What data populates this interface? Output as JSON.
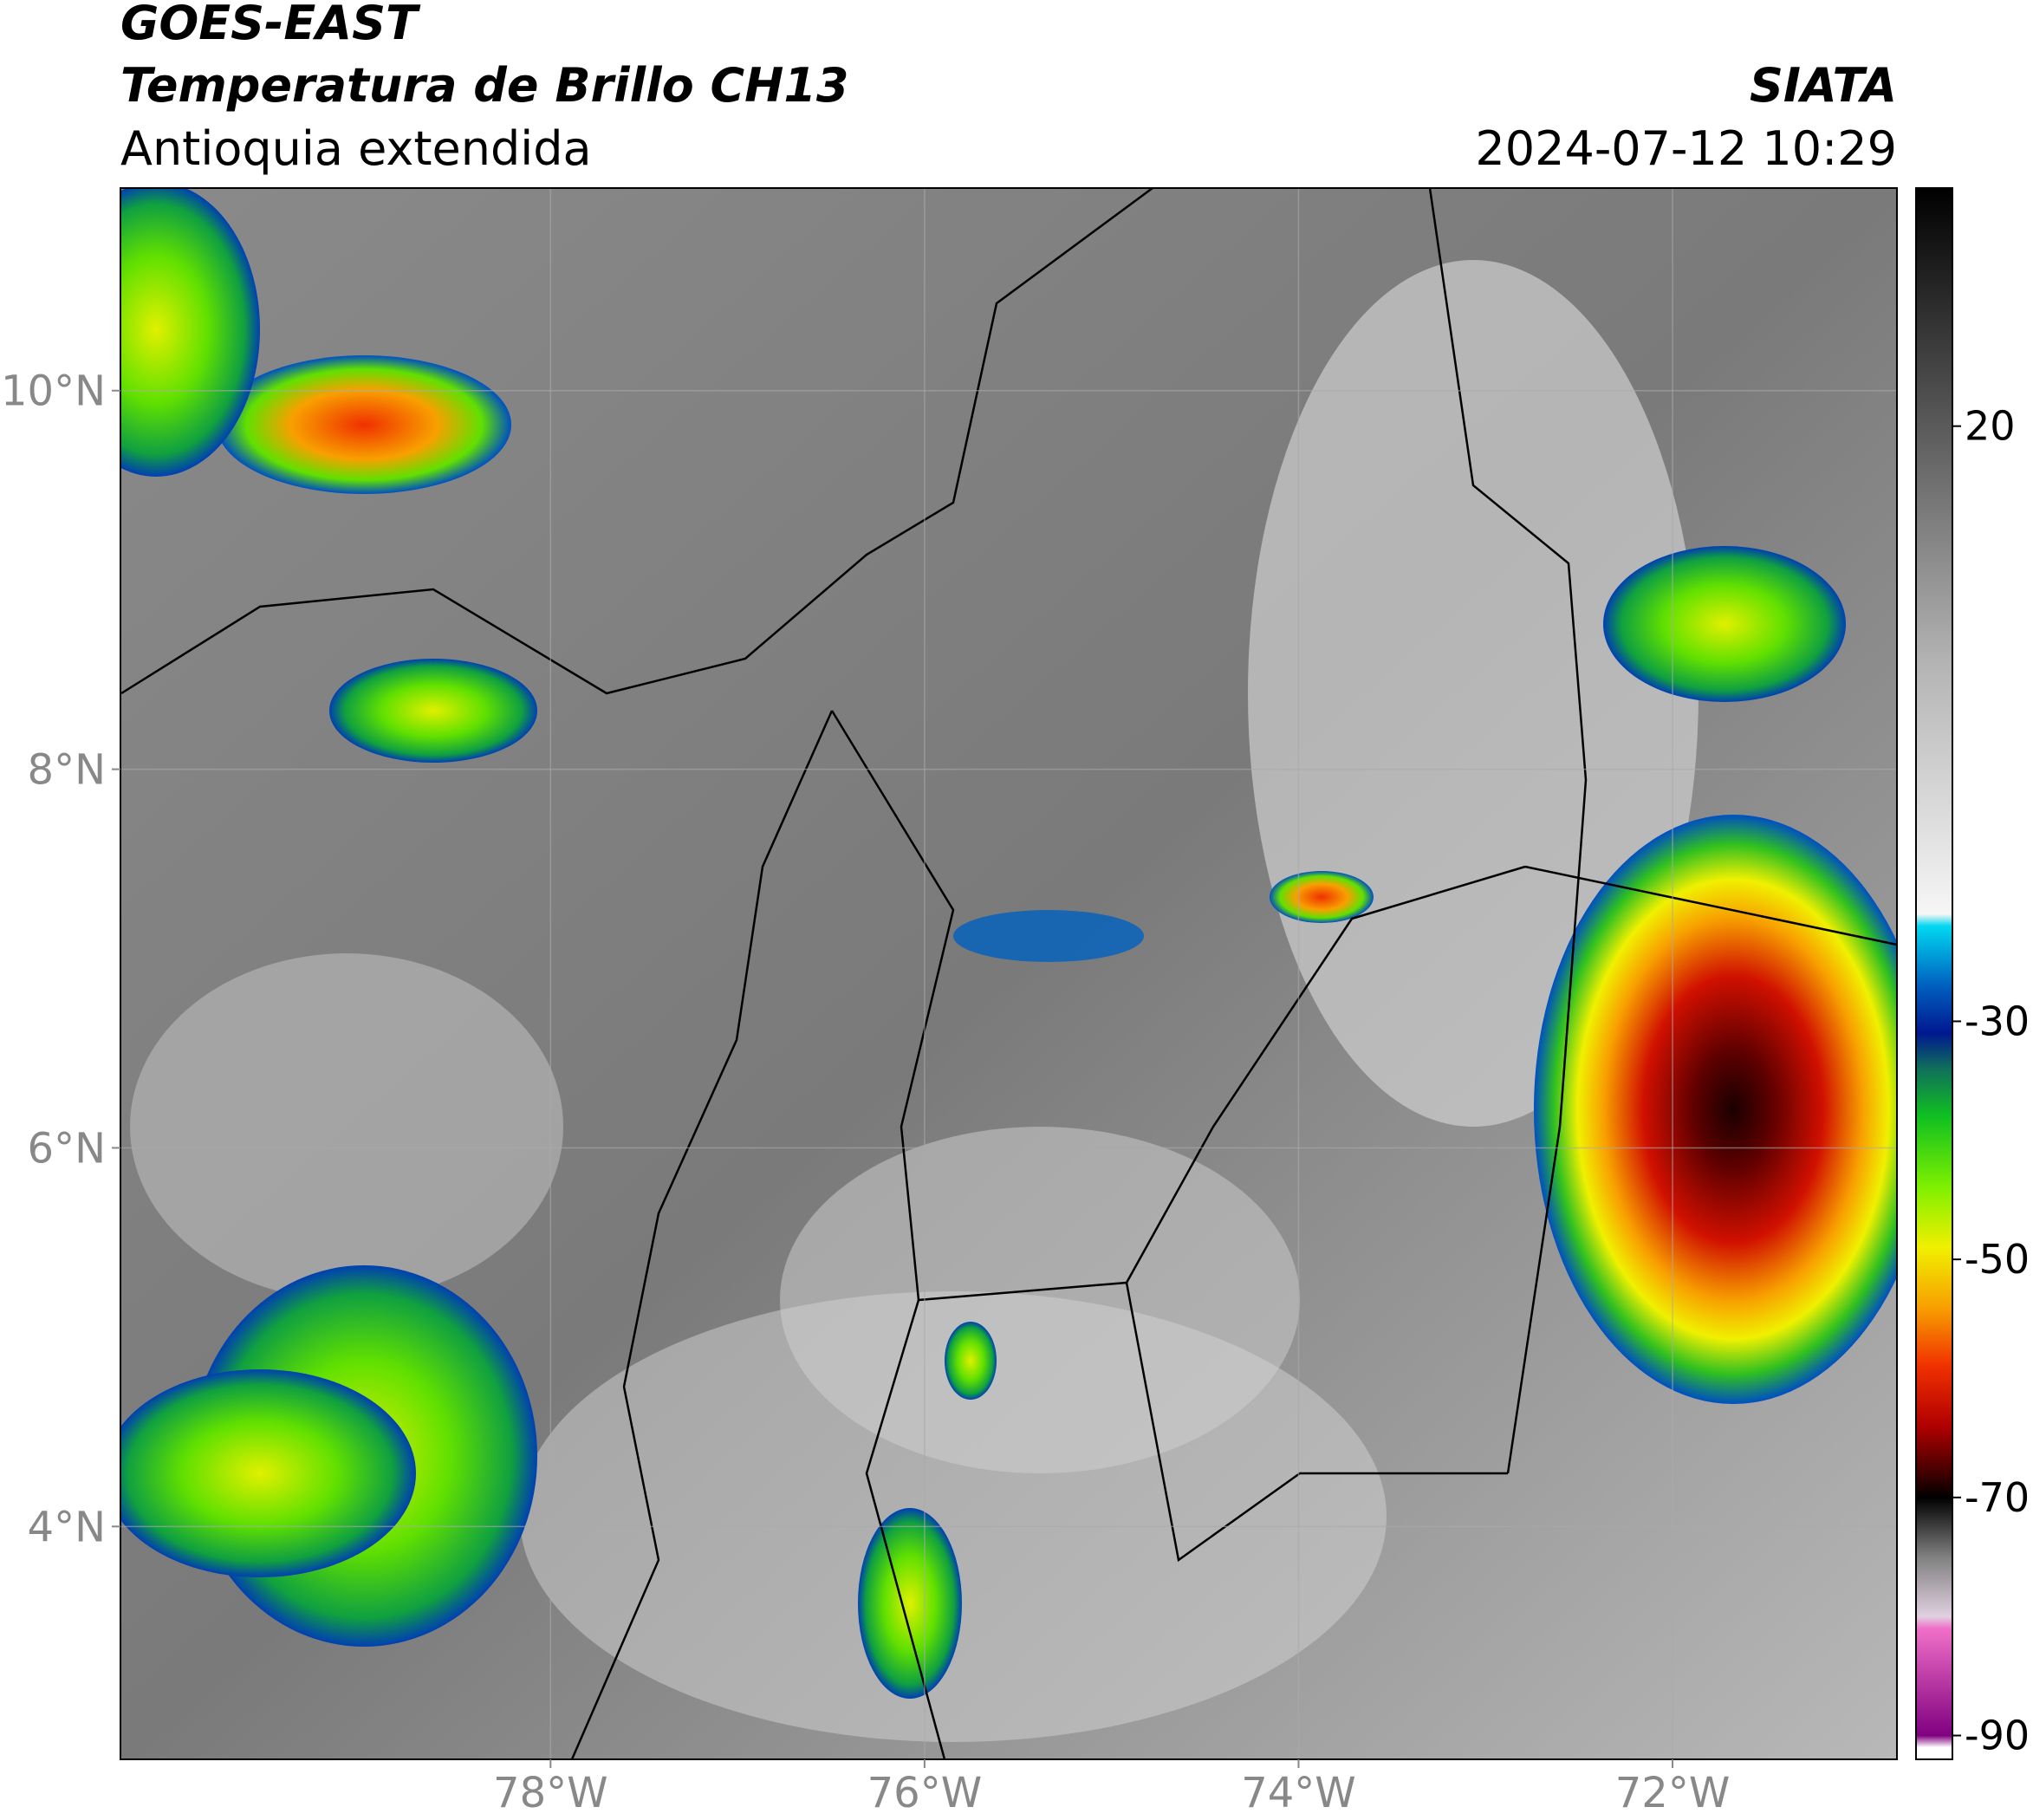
{
  "header": {
    "title": "GOES-EAST",
    "subtitle": "Temperatura de Brillo CH13",
    "region": "Antioquia extendida",
    "source": "SIATA",
    "datetime": "2024-07-12 10:29"
  },
  "map": {
    "xlim": [
      -80.3,
      -70.8
    ],
    "ylim": [
      2.77,
      11.07
    ],
    "xticks": [
      {
        "value": -78,
        "label": "78°W"
      },
      {
        "value": -76,
        "label": "76°W"
      },
      {
        "value": -74,
        "label": "74°W"
      },
      {
        "value": -72,
        "label": "72°W"
      }
    ],
    "yticks": [
      {
        "value": 4,
        "label": "4°N"
      },
      {
        "value": 6,
        "label": "6°N"
      },
      {
        "value": 8,
        "label": "8°N"
      },
      {
        "value": 10,
        "label": "10°N"
      }
    ],
    "grid": true
  },
  "colorbar": {
    "clim": [
      -92,
      40
    ],
    "ticks": [
      20,
      -30,
      -50,
      -70,
      -90
    ],
    "colors": [
      [
        40,
        "#000000"
      ],
      [
        20,
        "#5a5a5a"
      ],
      [
        0,
        "#b4b4b4"
      ],
      [
        -21,
        "#f6f6f6"
      ],
      [
        -22,
        "#00d8f0"
      ],
      [
        -27,
        "#0060c0"
      ],
      [
        -31,
        "#001890"
      ],
      [
        -34,
        "#10705a"
      ],
      [
        -38,
        "#10c020"
      ],
      [
        -44,
        "#80f000"
      ],
      [
        -49,
        "#f0f000"
      ],
      [
        -54,
        "#f8a000"
      ],
      [
        -59,
        "#f03000"
      ],
      [
        -64,
        "#b00000"
      ],
      [
        -68,
        "#400000"
      ],
      [
        -70,
        "#000000"
      ],
      [
        -75,
        "#808080"
      ],
      [
        -80,
        "#e0d0e0"
      ],
      [
        -81,
        "#f070c8"
      ],
      [
        -90,
        "#800080"
      ],
      [
        -91,
        "#ffffff"
      ]
    ]
  }
}
